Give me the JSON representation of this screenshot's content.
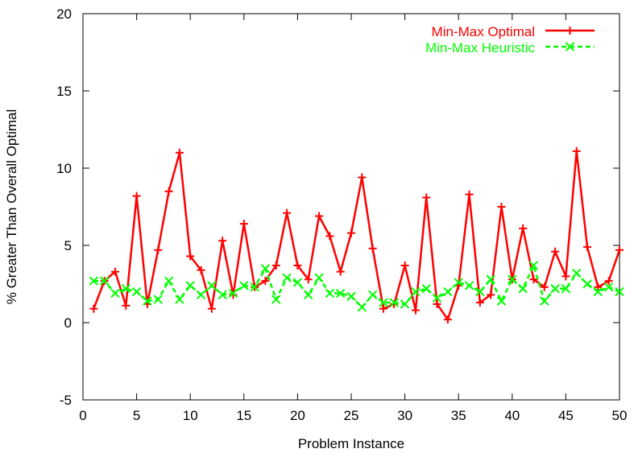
{
  "chart_data": {
    "type": "line",
    "xlabel": "Problem Instance",
    "ylabel": "% Greater Than Overall Optimal",
    "xlim": [
      0,
      50
    ],
    "ylim": [
      -5,
      20
    ],
    "xticks": [
      0,
      5,
      10,
      15,
      20,
      25,
      30,
      35,
      40,
      45,
      50
    ],
    "yticks": [
      -5,
      0,
      5,
      10,
      15,
      20
    ],
    "grid": false,
    "legend_position": "top-right",
    "x": [
      1,
      2,
      3,
      4,
      5,
      6,
      7,
      8,
      9,
      10,
      11,
      12,
      13,
      14,
      15,
      16,
      17,
      18,
      19,
      20,
      21,
      22,
      23,
      24,
      25,
      26,
      27,
      28,
      29,
      30,
      31,
      32,
      33,
      34,
      35,
      36,
      37,
      38,
      39,
      40,
      41,
      42,
      43,
      44,
      45,
      46,
      47,
      48,
      49,
      50
    ],
    "series": [
      {
        "name": "Min-Max Optimal",
        "color": "#ff0000",
        "marker": "plus",
        "dash": "solid",
        "values": [
          0.9,
          2.7,
          3.3,
          1.1,
          8.2,
          1.2,
          4.7,
          8.5,
          11.0,
          4.3,
          3.4,
          0.9,
          5.3,
          1.8,
          6.4,
          2.3,
          2.7,
          3.7,
          7.1,
          3.7,
          2.8,
          6.9,
          5.6,
          3.3,
          5.8,
          9.4,
          4.8,
          0.9,
          1.2,
          3.7,
          0.8,
          8.1,
          1.2,
          0.2,
          2.4,
          8.3,
          1.3,
          1.8,
          7.5,
          2.8,
          6.1,
          2.8,
          2.3,
          4.6,
          3.0,
          11.1,
          4.9,
          2.3,
          2.7,
          4.7
        ]
      },
      {
        "name": "Min-Max Heuristic",
        "color": "#00ff00",
        "marker": "x",
        "dash": "dashed",
        "values": [
          2.7,
          2.7,
          1.9,
          2.2,
          2.0,
          1.4,
          1.5,
          2.7,
          1.5,
          2.4,
          1.8,
          2.4,
          1.8,
          1.9,
          2.4,
          2.3,
          3.5,
          1.5,
          2.9,
          2.6,
          1.8,
          2.9,
          1.9,
          1.9,
          1.7,
          1.0,
          1.8,
          1.3,
          1.3,
          1.2,
          2.0,
          2.2,
          1.6,
          2.0,
          2.6,
          2.4,
          2.0,
          2.8,
          1.4,
          2.8,
          2.2,
          3.7,
          1.4,
          2.2,
          2.2,
          3.2,
          2.5,
          2.0,
          2.3,
          2.0
        ]
      }
    ]
  }
}
